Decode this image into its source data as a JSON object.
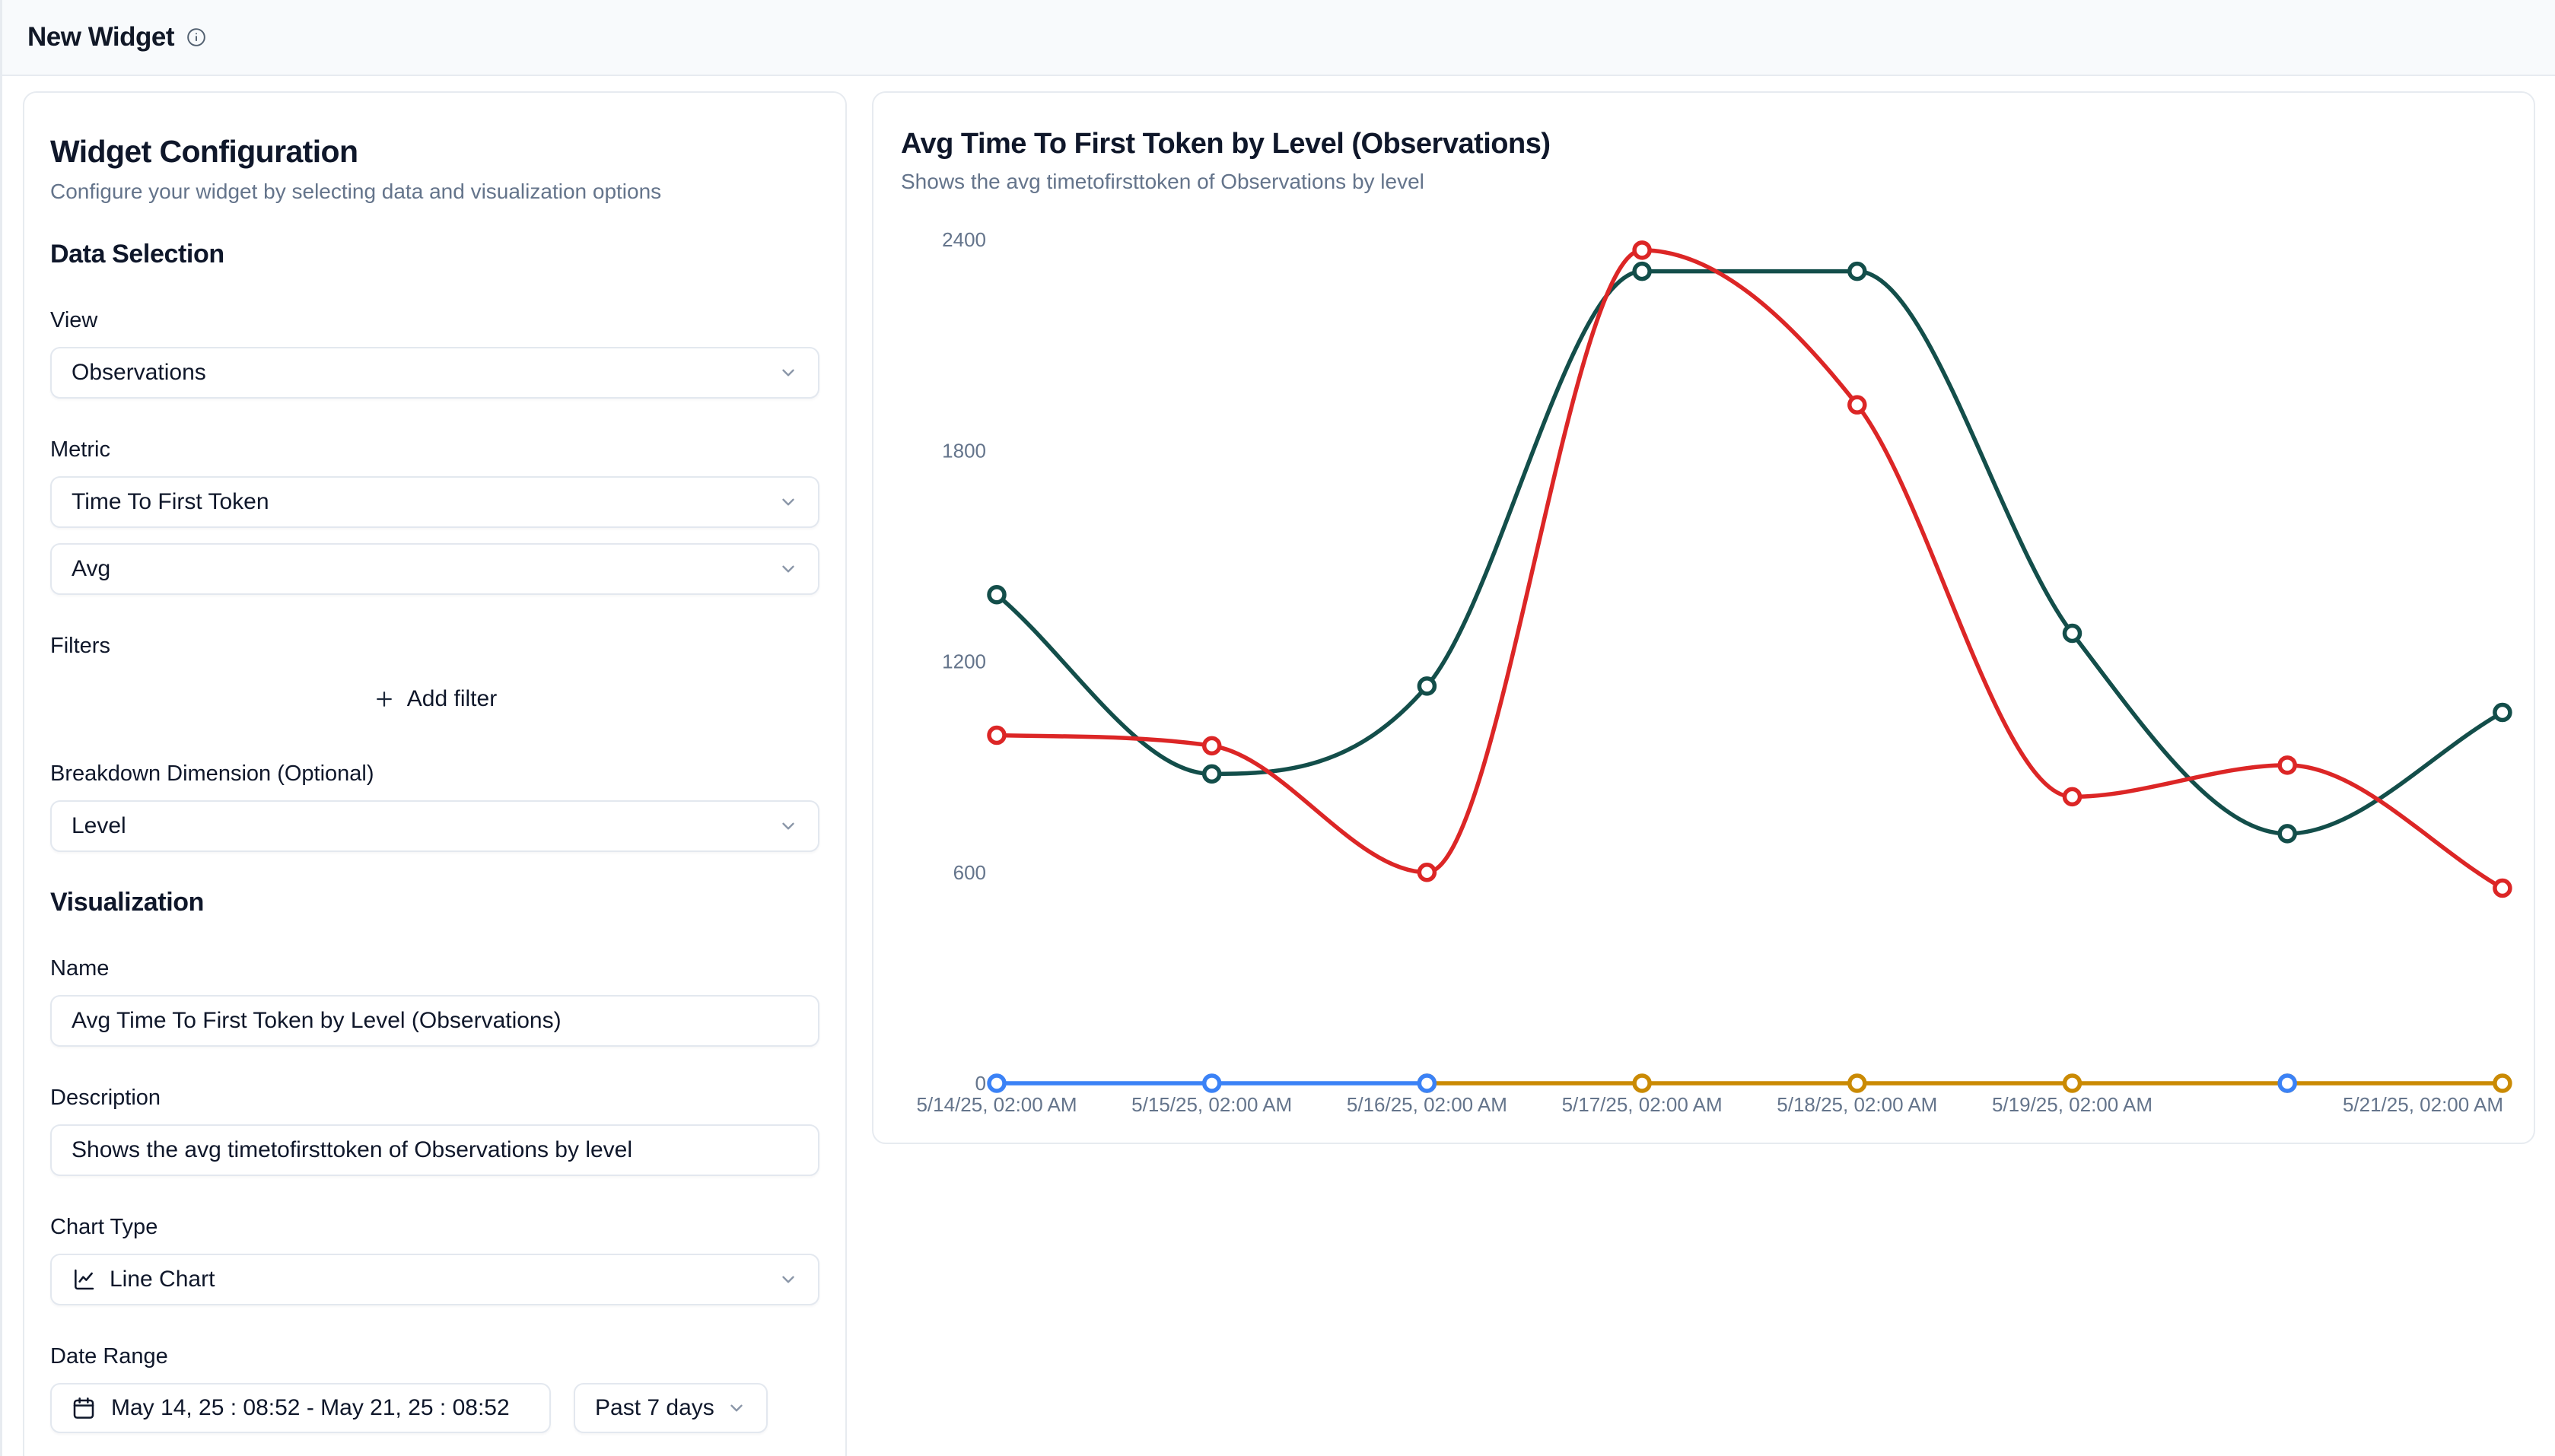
{
  "header": {
    "title": "New Widget"
  },
  "config_panel": {
    "title": "Widget Configuration",
    "subtitle": "Configure your widget by selecting data and visualization options",
    "data_selection": {
      "heading": "Data Selection",
      "view_label": "View",
      "view_value": "Observations",
      "metric_label": "Metric",
      "metric_value": "Time To First Token",
      "aggregation_value": "Avg",
      "filters_label": "Filters",
      "add_filter_label": "Add filter",
      "breakdown_label": "Breakdown Dimension (Optional)",
      "breakdown_value": "Level"
    },
    "visualization": {
      "heading": "Visualization",
      "name_label": "Name",
      "name_value": "Avg Time To First Token by Level (Observations)",
      "description_label": "Description",
      "description_value": "Shows the avg timetofirsttoken of Observations by level",
      "chart_type_label": "Chart Type",
      "chart_type_value": "Line Chart",
      "date_range_label": "Date Range",
      "date_range_value": "May 14, 25 : 08:52 - May 21, 25 : 08:52",
      "date_range_preset": "Past 7 days"
    }
  },
  "chart_panel": {
    "title": "Avg Time To First Token by Level (Observations)",
    "subtitle": "Shows the avg timetofirsttoken of Observations by level"
  },
  "chart_data": {
    "type": "line",
    "title": "Avg Time To First Token by Level (Observations)",
    "subtitle": "Shows the avg timetofirsttoken of Observations by level",
    "x_tick_labels": [
      "5/14/25, 02:00 AM",
      "5/15/25, 02:00 AM",
      "5/16/25, 02:00 AM",
      "5/17/25, 02:00 AM",
      "5/18/25, 02:00 AM",
      "5/19/25, 02:00 AM",
      "",
      "5/21/25, 02:00 AM"
    ],
    "ylim": [
      0,
      2400
    ],
    "yticks": [
      0,
      600,
      1200,
      1800,
      2400
    ],
    "grid": false,
    "legend": "none",
    "marker": "hollow-circle",
    "curve": "monotone",
    "series": [
      {
        "name": "series-teal",
        "color": "#134e4a",
        "values": [
          1390,
          880,
          1130,
          2310,
          2310,
          1280,
          710,
          1055
        ]
      },
      {
        "name": "series-red",
        "color": "#dc2626",
        "values": [
          990,
          960,
          600,
          2370,
          1930,
          815,
          905,
          555
        ]
      },
      {
        "name": "series-amber",
        "color": "#ca8a04",
        "values": [
          null,
          null,
          0,
          0,
          0,
          0,
          0,
          0
        ]
      },
      {
        "name": "series-blue",
        "color": "#3b82f6",
        "values": [
          0,
          0,
          0,
          null,
          null,
          null,
          0,
          null
        ]
      }
    ]
  }
}
